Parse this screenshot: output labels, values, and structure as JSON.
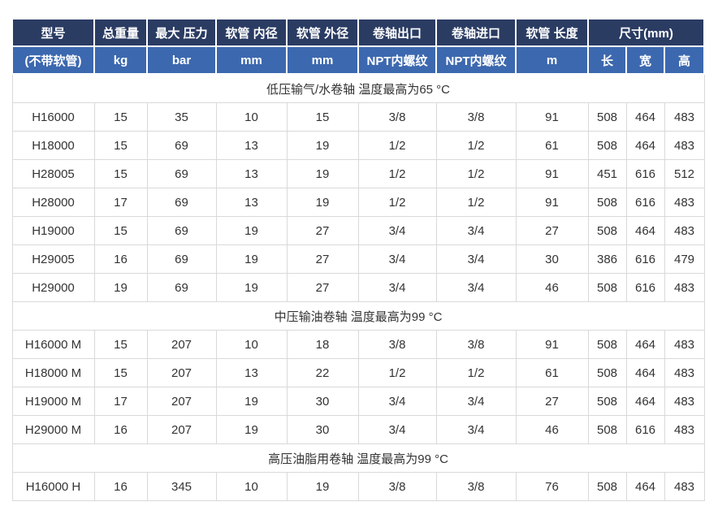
{
  "table": {
    "colors": {
      "header_dark_bg": "#2b3c63",
      "header_light_bg": "#3c68af",
      "header_text": "#ffffff",
      "body_text": "#333333",
      "grid_line": "#d9d9d9"
    },
    "header_row1": [
      "型号",
      "总重量",
      "最大 压力",
      "软管 内径",
      "软管 外径",
      "卷轴出口",
      "卷轴进口",
      "软管 长度",
      "尺寸(mm)"
    ],
    "header_row2": [
      "(不带软管)",
      "kg",
      "bar",
      "mm",
      "mm",
      "NPT内螺纹",
      "NPT内螺纹",
      "m",
      "长",
      "宽",
      "高"
    ],
    "sections": [
      {
        "title": "低压输气/水卷轴 温度最高为65 °C",
        "rows": [
          [
            "H16000",
            "15",
            "35",
            "10",
            "15",
            "3/8",
            "3/8",
            "91",
            "508",
            "464",
            "483"
          ],
          [
            "H18000",
            "15",
            "69",
            "13",
            "19",
            "1/2",
            "1/2",
            "61",
            "508",
            "464",
            "483"
          ],
          [
            "H28005",
            "15",
            "69",
            "13",
            "19",
            "1/2",
            "1/2",
            "91",
            "451",
            "616",
            "512"
          ],
          [
            "H28000",
            "17",
            "69",
            "13",
            "19",
            "1/2",
            "1/2",
            "91",
            "508",
            "616",
            "483"
          ],
          [
            "H19000",
            "15",
            "69",
            "19",
            "27",
            "3/4",
            "3/4",
            "27",
            "508",
            "464",
            "483"
          ],
          [
            "H29005",
            "16",
            "69",
            "19",
            "27",
            "3/4",
            "3/4",
            "30",
            "386",
            "616",
            "479"
          ],
          [
            "H29000",
            "19",
            "69",
            "19",
            "27",
            "3/4",
            "3/4",
            "46",
            "508",
            "616",
            "483"
          ]
        ]
      },
      {
        "title": "中压输油卷轴 温度最高为99 °C",
        "rows": [
          [
            "H16000 M",
            "15",
            "207",
            "10",
            "18",
            "3/8",
            "3/8",
            "91",
            "508",
            "464",
            "483"
          ],
          [
            "H18000 M",
            "15",
            "207",
            "13",
            "22",
            "1/2",
            "1/2",
            "61",
            "508",
            "464",
            "483"
          ],
          [
            "H19000 M",
            "17",
            "207",
            "19",
            "30",
            "3/4",
            "3/4",
            "27",
            "508",
            "464",
            "483"
          ],
          [
            "H29000 M",
            "16",
            "207",
            "19",
            "30",
            "3/4",
            "3/4",
            "46",
            "508",
            "616",
            "483"
          ]
        ]
      },
      {
        "title": "高压油脂用卷轴 温度最高为99 °C",
        "rows": [
          [
            "H16000 H",
            "16",
            "345",
            "10",
            "19",
            "3/8",
            "3/8",
            "76",
            "508",
            "464",
            "483"
          ]
        ]
      }
    ]
  }
}
